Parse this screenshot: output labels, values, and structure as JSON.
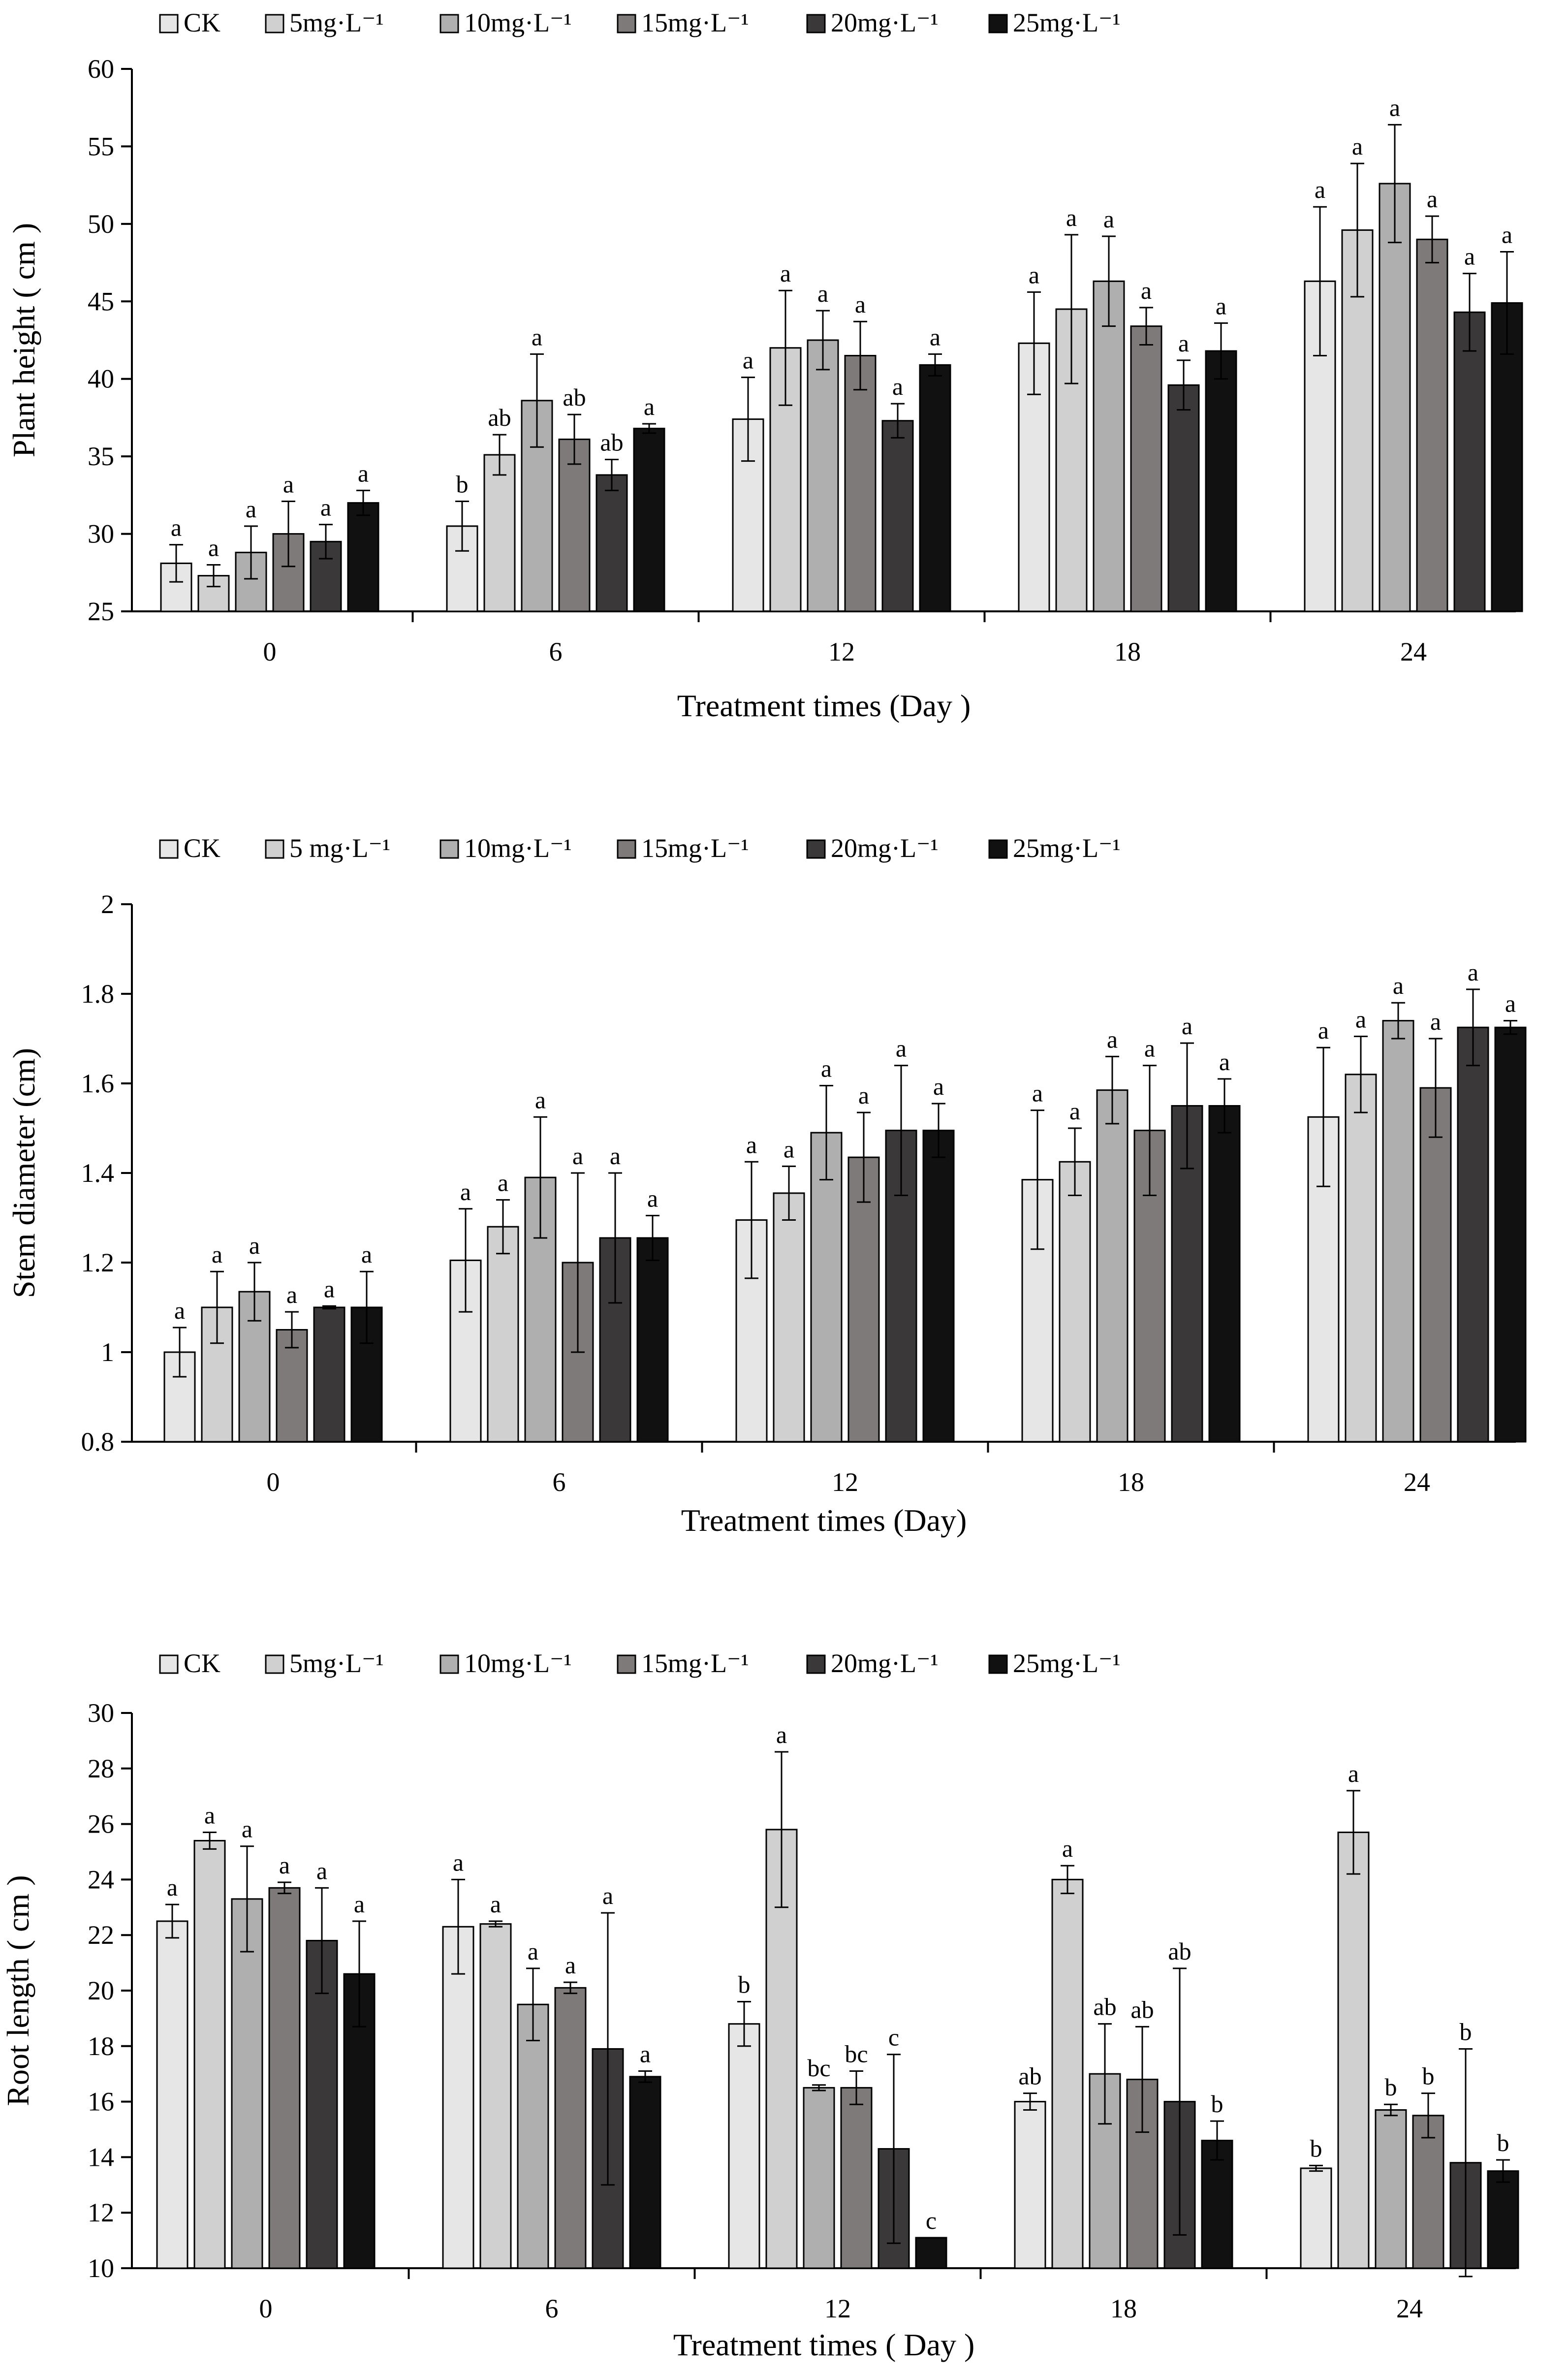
{
  "chart_data": [
    {
      "type": "bar",
      "title": "",
      "xlabel": "Treatment times (Day )",
      "ylabel": "Plant height ( cm )",
      "ylim": [
        25,
        60
      ],
      "ystep": 5,
      "ytick_labels": [
        "25",
        "30",
        "35",
        "40",
        "45",
        "50",
        "55",
        "60"
      ],
      "grid": false,
      "legend_position": "top",
      "categories": [
        "0",
        "6",
        "12",
        "18",
        "24"
      ],
      "series": [
        {
          "name": "CK",
          "color": "#e6e6e6",
          "values": [
            28.1,
            30.5,
            37.4,
            42.3,
            46.3
          ],
          "errors": [
            1.2,
            1.6,
            2.7,
            3.3,
            4.8
          ],
          "labels": [
            "a",
            "b",
            "a",
            "a",
            "a"
          ]
        },
        {
          "name": "5mg·L⁻¹",
          "color": "#d0d0d0",
          "values": [
            27.3,
            35.1,
            42.0,
            44.5,
            49.6
          ],
          "errors": [
            0.7,
            1.3,
            3.7,
            4.8,
            4.3
          ],
          "labels": [
            "a",
            "ab",
            "a",
            "a",
            "a"
          ]
        },
        {
          "name": "10mg·L⁻¹",
          "color": "#afafaf",
          "values": [
            28.8,
            38.6,
            42.5,
            46.3,
            52.6
          ],
          "errors": [
            1.7,
            3.0,
            1.9,
            2.9,
            3.8
          ],
          "labels": [
            "a",
            "a",
            "a",
            "a",
            "a"
          ]
        },
        {
          "name": "15mg·L⁻¹",
          "color": "#7f7a7a",
          "values": [
            30.0,
            36.1,
            41.5,
            43.4,
            49.0
          ],
          "errors": [
            2.1,
            1.6,
            2.2,
            1.2,
            1.5
          ],
          "labels": [
            "a",
            "ab",
            "a",
            "a",
            "a"
          ]
        },
        {
          "name": "20mg·L⁻¹",
          "color": "#3a3838",
          "values": [
            29.5,
            33.8,
            37.3,
            39.6,
            44.3
          ],
          "errors": [
            1.1,
            1.0,
            1.1,
            1.6,
            2.5
          ],
          "labels": [
            "a",
            "ab",
            "a",
            "a",
            "a"
          ]
        },
        {
          "name": "25mg·L⁻¹",
          "color": "#111111",
          "values": [
            32.0,
            36.8,
            40.9,
            41.8,
            44.9
          ],
          "errors": [
            0.8,
            0.3,
            0.7,
            1.8,
            3.3
          ],
          "labels": [
            "a",
            "a",
            "a",
            "a",
            "a"
          ]
        }
      ]
    },
    {
      "type": "bar",
      "title": "",
      "xlabel": "Treatment times (Day)",
      "ylabel": "Stem diameter (cm)",
      "ylim": [
        0.8,
        2.0
      ],
      "ystep": 0.2,
      "ytick_labels": [
        "0.8",
        "1",
        "1.2",
        "1.4",
        "1.6",
        "1.8",
        "2"
      ],
      "grid": false,
      "legend_position": "top",
      "categories": [
        "0",
        "6",
        "12",
        "18",
        "24"
      ],
      "series": [
        {
          "name": "CK",
          "color": "#e6e6e6",
          "values": [
            1.0,
            1.205,
            1.295,
            1.385,
            1.525
          ],
          "errors": [
            0.055,
            0.115,
            0.13,
            0.155,
            0.155
          ],
          "labels": [
            "a",
            "a",
            "a",
            "a",
            "a"
          ]
        },
        {
          "name": "5 mg·L⁻¹",
          "color": "#d0d0d0",
          "values": [
            1.1,
            1.28,
            1.355,
            1.425,
            1.62
          ],
          "errors": [
            0.08,
            0.06,
            0.06,
            0.075,
            0.085
          ],
          "labels": [
            "a",
            "a",
            "a",
            "a",
            "a"
          ]
        },
        {
          "name": "10mg·L⁻¹",
          "color": "#afafaf",
          "values": [
            1.135,
            1.39,
            1.49,
            1.585,
            1.74
          ],
          "errors": [
            0.065,
            0.135,
            0.105,
            0.075,
            0.04
          ],
          "labels": [
            "a",
            "a",
            "a",
            "a",
            "a"
          ]
        },
        {
          "name": "15mg·L⁻¹",
          "color": "#7f7a7a",
          "values": [
            1.05,
            1.2,
            1.435,
            1.495,
            1.59
          ],
          "errors": [
            0.04,
            0.2,
            0.1,
            0.145,
            0.11
          ],
          "labels": [
            "a",
            "a",
            "a",
            "a",
            "a"
          ]
        },
        {
          "name": "20mg·L⁻¹",
          "color": "#3a3838",
          "values": [
            1.1,
            1.255,
            1.495,
            1.55,
            1.725
          ],
          "errors": [
            0.003,
            0.145,
            0.145,
            0.14,
            0.085
          ],
          "labels": [
            "a",
            "a",
            "a",
            "a",
            "a"
          ]
        },
        {
          "name": "25mg·L⁻¹",
          "color": "#111111",
          "values": [
            1.1,
            1.255,
            1.495,
            1.55,
            1.725
          ],
          "errors": [
            0.08,
            0.05,
            0.06,
            0.06,
            0.015
          ],
          "labels": [
            "a",
            "a",
            "a",
            "a",
            "a"
          ]
        }
      ]
    },
    {
      "type": "bar",
      "title": "",
      "xlabel": "Treatment times ( Day )",
      "ylabel": "Root length ( cm )",
      "ylim": [
        10,
        30
      ],
      "ystep": 2,
      "ytick_labels": [
        "10",
        "12",
        "14",
        "16",
        "18",
        "20",
        "22",
        "24",
        "26",
        "28",
        "30"
      ],
      "grid": false,
      "legend_position": "top",
      "categories": [
        "0",
        "6",
        "12",
        "18",
        "24"
      ],
      "series": [
        {
          "name": "CK",
          "color": "#e6e6e6",
          "values": [
            22.5,
            22.3,
            18.8,
            16.0,
            13.6
          ],
          "errors": [
            0.6,
            1.7,
            0.8,
            0.3,
            0.1
          ],
          "labels": [
            "a",
            "a",
            "b",
            "ab",
            "b"
          ]
        },
        {
          "name": "5mg·L⁻¹",
          "color": "#d0d0d0",
          "values": [
            25.4,
            22.4,
            25.8,
            24.0,
            25.7
          ],
          "errors": [
            0.3,
            0.1,
            2.8,
            0.5,
            1.5
          ],
          "labels": [
            "a",
            "a",
            "a",
            "a",
            "a"
          ]
        },
        {
          "name": "10mg·L⁻¹",
          "color": "#afafaf",
          "values": [
            23.3,
            19.5,
            16.5,
            17.0,
            15.7
          ],
          "errors": [
            1.9,
            1.3,
            0.1,
            1.8,
            0.2
          ],
          "labels": [
            "a",
            "a",
            "bc",
            "ab",
            "b"
          ]
        },
        {
          "name": "15mg·L⁻¹",
          "color": "#7f7a7a",
          "values": [
            23.7,
            20.1,
            16.5,
            16.8,
            15.5
          ],
          "errors": [
            0.2,
            0.2,
            0.6,
            1.9,
            0.8
          ],
          "labels": [
            "a",
            "a",
            "bc",
            "ab",
            "b"
          ]
        },
        {
          "name": "20mg·L⁻¹",
          "color": "#3a3838",
          "values": [
            21.8,
            17.9,
            14.3,
            16.0,
            13.8
          ],
          "errors": [
            1.9,
            4.9,
            3.4,
            4.8,
            4.1
          ],
          "labels": [
            "a",
            "a",
            "c",
            "ab",
            "b"
          ]
        },
        {
          "name": "25mg·L⁻¹",
          "color": "#111111",
          "values": [
            20.6,
            16.9,
            11.1,
            14.6,
            13.5
          ],
          "errors": [
            1.9,
            0.2,
            0.0,
            0.7,
            0.4
          ],
          "labels": [
            "a",
            "a",
            "c",
            "b",
            "b"
          ]
        }
      ]
    }
  ]
}
